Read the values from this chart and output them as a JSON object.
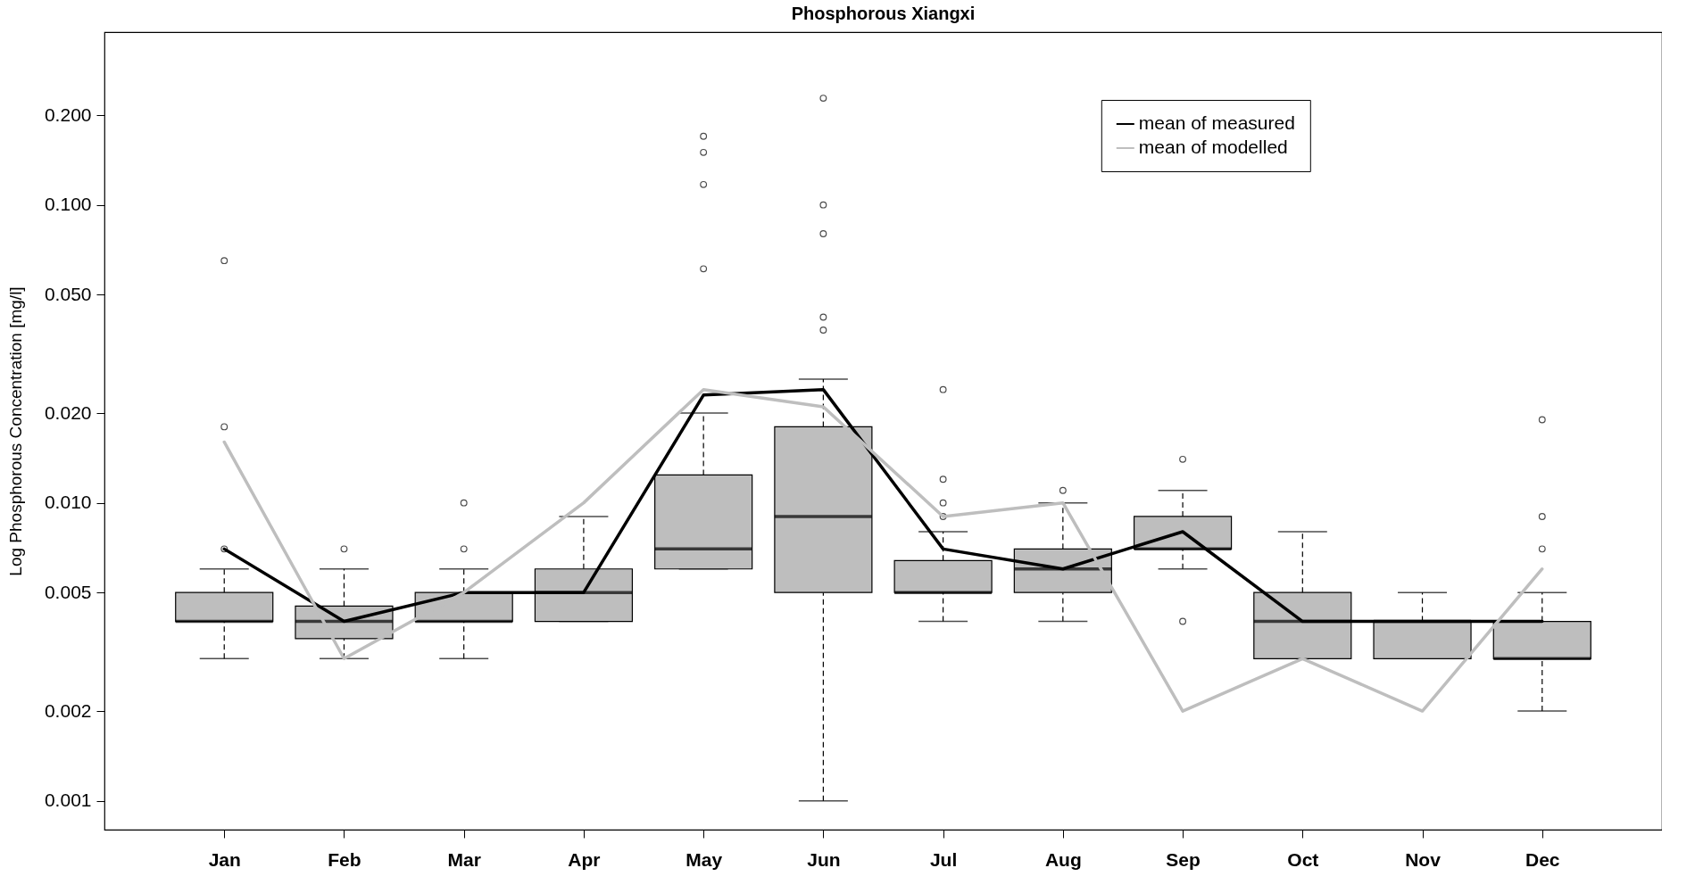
{
  "chart_data": {
    "type": "box",
    "title": "Phosphorous Xiangxi",
    "ylabel": "Log Phosphorous Concentration [mg/l]",
    "categories": [
      "Jan",
      "Feb",
      "Mar",
      "Apr",
      "May",
      "Jun",
      "Jul",
      "Aug",
      "Sep",
      "Oct",
      "Nov",
      "Dec"
    ],
    "log": "y",
    "ylim": [
      0.0008,
      0.38
    ],
    "yticks": [
      {
        "value": 0.001,
        "label": "0.001"
      },
      {
        "value": 0.002,
        "label": "0.002"
      },
      {
        "value": 0.005,
        "label": "0.005"
      },
      {
        "value": 0.01,
        "label": "0.010"
      },
      {
        "value": 0.02,
        "label": "0.020"
      },
      {
        "value": 0.05,
        "label": "0.050"
      },
      {
        "value": 0.1,
        "label": "0.100"
      },
      {
        "value": 0.2,
        "label": "0.200"
      }
    ],
    "grid": false,
    "legend": "top right",
    "series": [
      {
        "color": "#bebebe",
        "boxes": [
          {
            "low": 0.003,
            "q1": 0.004,
            "median": 0.004,
            "q3": 0.005,
            "high": 0.006,
            "outliers": [
              0.007,
              0.018,
              0.065
            ]
          },
          {
            "low": 0.003,
            "q1": 0.0035,
            "median": 0.004,
            "q3": 0.0045,
            "high": 0.006,
            "outliers": [
              0.007
            ]
          },
          {
            "low": 0.003,
            "q1": 0.004,
            "median": 0.004,
            "q3": 0.005,
            "high": 0.006,
            "outliers": [
              0.007,
              0.01
            ]
          },
          {
            "low": 0.004,
            "q1": 0.004,
            "median": 0.005,
            "q3": 0.006,
            "high": 0.009
          },
          {
            "low": 0.006,
            "q1": 0.006,
            "median": 0.007,
            "q3": 0.0124,
            "high": 0.02,
            "outliers": [
              0.061,
              0.117,
              0.15,
              0.17
            ]
          },
          {
            "low": 0.001,
            "q1": 0.005,
            "median": 0.009,
            "q3": 0.018,
            "high": 0.026,
            "outliers": [
              0.038,
              0.042,
              0.08,
              0.1,
              0.228
            ]
          },
          {
            "low": 0.004,
            "q1": 0.005,
            "median": 0.005,
            "q3": 0.0064,
            "high": 0.008,
            "outliers": [
              0.009,
              0.01,
              0.012,
              0.024
            ]
          },
          {
            "low": 0.004,
            "q1": 0.005,
            "median": 0.006,
            "q3": 0.007,
            "high": 0.01,
            "outliers": [
              0.011
            ]
          },
          {
            "low": 0.006,
            "q1": 0.007,
            "median": 0.007,
            "q3": 0.009,
            "high": 0.011,
            "outliers": [
              0.004,
              0.014
            ]
          },
          {
            "low": 0.003,
            "q1": 0.003,
            "median": 0.004,
            "q3": 0.005,
            "high": 0.008
          },
          {
            "low": 0.003,
            "q1": 0.003,
            "median": 0.004,
            "q3": 0.004,
            "high": 0.005
          },
          {
            "low": 0.002,
            "q1": 0.003,
            "median": 0.003,
            "q3": 0.004,
            "high": 0.005,
            "outliers": [
              0.007,
              0.009,
              0.019
            ]
          }
        ]
      },
      {
        "type": "line",
        "name": "mean of measured",
        "color": "#000000",
        "values": [
          0.007,
          0.004,
          0.005,
          0.005,
          0.023,
          0.024,
          0.007,
          0.006,
          0.008,
          0.004,
          0.004,
          0.004
        ]
      },
      {
        "type": "line",
        "name": "mean of modelled",
        "color": "#bebebe",
        "values": [
          0.016,
          0.003,
          0.005,
          0.01,
          0.024,
          0.021,
          0.009,
          0.01,
          0.002,
          0.003,
          0.002,
          0.006
        ]
      }
    ]
  }
}
